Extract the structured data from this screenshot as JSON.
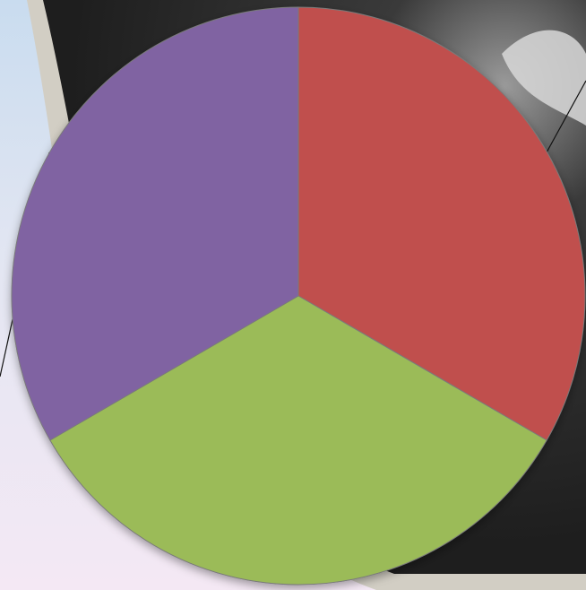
{
  "chart_data": {
    "type": "pie",
    "title": "",
    "slices": [
      {
        "value": 1,
        "color": "#c0504d"
      },
      {
        "value": 1,
        "color": "#9bbb59"
      },
      {
        "value": 1,
        "color": "#8064a2"
      }
    ],
    "start_angle_deg": 0,
    "direction": "clockwise",
    "legend": "none",
    "data_labels": "none"
  },
  "background": {
    "frame_color": "#d2cec4",
    "photo_color": "#2a2a2a",
    "sky_color": "#c9dcef"
  }
}
